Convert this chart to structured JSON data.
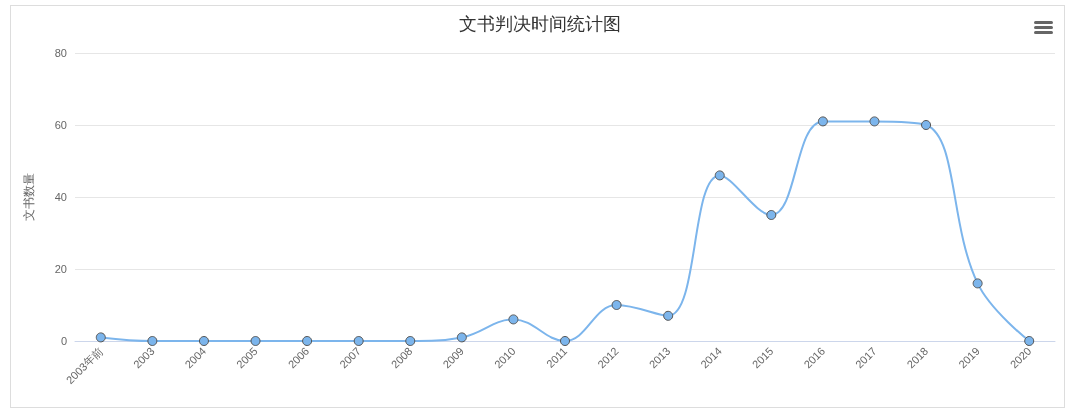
{
  "chart_data": {
    "type": "line",
    "title": "文书判决时间统计图",
    "ylabel": "文书数量",
    "categories": [
      "2003年前",
      "2003",
      "2004",
      "2005",
      "2006",
      "2007",
      "2008",
      "2009",
      "2010",
      "2011",
      "2012",
      "2013",
      "2014",
      "2015",
      "2016",
      "2017",
      "2018",
      "2019",
      "2020"
    ],
    "series": [
      {
        "color": "#7cb5ec",
        "values": [
          1,
          0,
          0,
          0,
          0,
          0,
          0,
          1,
          6,
          0,
          10,
          7,
          46,
          35,
          61,
          61,
          60,
          16,
          0
        ]
      }
    ],
    "ylim": [
      0,
      80
    ],
    "yticks": [
      0,
      20,
      40,
      60,
      80
    ],
    "grid": "y",
    "marker": "circle",
    "line_style": "solid"
  }
}
